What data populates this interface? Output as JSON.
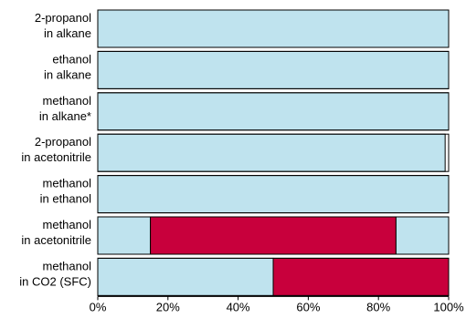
{
  "chart_data": {
    "type": "bar",
    "orientation": "horizontal",
    "stacked": true,
    "categories": [
      [
        "2-propanol",
        "in alkane"
      ],
      [
        "ethanol",
        "in alkane"
      ],
      [
        "methanol",
        "in alkane*"
      ],
      [
        "2-propanol",
        "in acetonitrile"
      ],
      [
        "methanol",
        "in ethanol"
      ],
      [
        "methanol",
        "in acetonitrile"
      ],
      [
        "methanol",
        "in CO2 (SFC)"
      ]
    ],
    "series": [
      {
        "color": "#bfe3ee",
        "values": [
          100,
          100,
          100,
          99,
          100,
          15,
          50
        ]
      },
      {
        "color": "#c8003c",
        "values": [
          0,
          0,
          0,
          0,
          0,
          70,
          50
        ]
      },
      {
        "color": "#bfe3ee",
        "values": [
          0,
          0,
          0,
          0,
          0,
          15,
          0
        ]
      }
    ],
    "xlim": [
      0,
      100
    ],
    "xticks": [
      "0%",
      "20%",
      "40%",
      "60%",
      "80%",
      "100%"
    ],
    "title": "",
    "xlabel": "",
    "ylabel": "",
    "grid": false
  }
}
